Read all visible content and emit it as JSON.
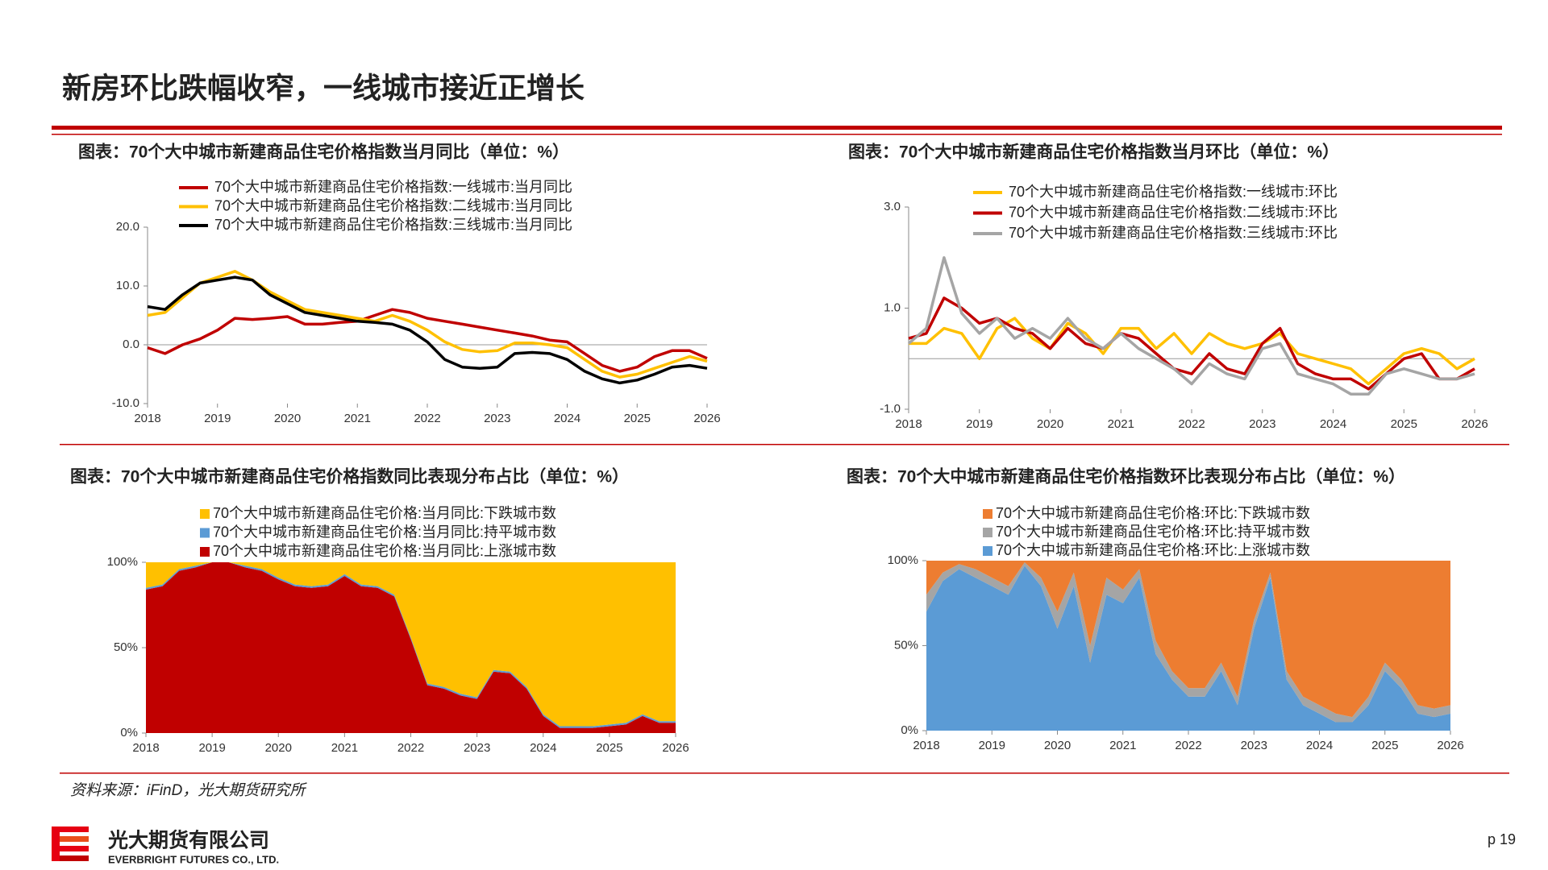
{
  "title": "新房环比跌幅收窄，一线城市接近正增长",
  "source": "资料来源：iFinD，光大期货研究所",
  "company": "光大期货有限公司",
  "company_en": "EVERBRIGHT FUTURES CO., LTD.",
  "page": "p 19",
  "chart_data": [
    {
      "type": "line",
      "title": "图表：70个大中城市新建商品住宅价格指数当月同比（单位：%）",
      "x": [
        2018,
        2018.25,
        2018.5,
        2018.75,
        2019,
        2019.25,
        2019.5,
        2019.75,
        2020,
        2020.25,
        2020.5,
        2020.75,
        2021,
        2021.25,
        2021.5,
        2021.75,
        2022,
        2022.25,
        2022.5,
        2022.75,
        2023,
        2023.25,
        2023.5,
        2023.75,
        2024,
        2024.25,
        2024.5,
        2024.75,
        2025,
        2025.25,
        2025.5,
        2025.75,
        2026
      ],
      "xlim": [
        2018,
        2026
      ],
      "xticks": [
        2018,
        2019,
        2020,
        2021,
        2022,
        2023,
        2024,
        2025,
        2026
      ],
      "ylim": [
        -10,
        20
      ],
      "yticks": [
        {
          "value": -10,
          "label": "-10.0"
        },
        {
          "value": 0,
          "label": "0.0"
        },
        {
          "value": 10,
          "label": "10.0"
        },
        {
          "value": 20,
          "label": "20.0"
        }
      ],
      "series": [
        {
          "name": "70个大中城市新建商品住宅价格指数:一线城市:当月同比",
          "color": "#C00000",
          "values": [
            -0.5,
            -1.5,
            0,
            1,
            2.5,
            4.5,
            4.3,
            4.5,
            4.8,
            3.5,
            3.5,
            3.8,
            4,
            5,
            6,
            5.5,
            4.5,
            4,
            3.5,
            3,
            2.5,
            2,
            1.5,
            0.8,
            0.5,
            -1.5,
            -3.5,
            -4.5,
            -3.8,
            -2,
            -1,
            -1,
            -2.3
          ]
        },
        {
          "name": "70个大中城市新建商品住宅价格指数:二线城市:当月同比",
          "color": "#FFC000",
          "values": [
            5,
            5.5,
            8,
            10.5,
            11.5,
            12.5,
            11,
            9,
            7.5,
            6,
            5.5,
            5,
            4.5,
            4,
            5,
            4,
            2.5,
            0.5,
            -0.8,
            -1.2,
            -1.0,
            0.3,
            0.3,
            0,
            -0.5,
            -2.5,
            -4.5,
            -5.5,
            -5,
            -4,
            -3,
            -2,
            -2.8
          ]
        },
        {
          "name": "70个大中城市新建商品住宅价格指数:三线城市:当月同比",
          "color": "#000000",
          "values": [
            6.5,
            6,
            8.5,
            10.5,
            11,
            11.5,
            11,
            8.5,
            7,
            5.5,
            5,
            4.5,
            4,
            3.8,
            3.5,
            2.5,
            0.5,
            -2.5,
            -3.8,
            -4,
            -3.8,
            -1.5,
            -1.3,
            -1.5,
            -2.5,
            -4.5,
            -5.8,
            -6.5,
            -6,
            -5,
            -3.8,
            -3.5,
            -4
          ]
        }
      ]
    },
    {
      "type": "line",
      "title": "图表：70个大中城市新建商品住宅价格指数当月环比（单位：%）",
      "x": [
        2018,
        2018.25,
        2018.5,
        2018.75,
        2019,
        2019.25,
        2019.5,
        2019.75,
        2020,
        2020.25,
        2020.5,
        2020.75,
        2021,
        2021.25,
        2021.5,
        2021.75,
        2022,
        2022.25,
        2022.5,
        2022.75,
        2023,
        2023.25,
        2023.5,
        2023.75,
        2024,
        2024.25,
        2024.5,
        2024.75,
        2025,
        2025.25,
        2025.5,
        2025.75,
        2026
      ],
      "xlim": [
        2018,
        2026
      ],
      "xticks": [
        2018,
        2019,
        2020,
        2021,
        2022,
        2023,
        2024,
        2025,
        2026
      ],
      "ylim": [
        -1,
        3
      ],
      "yticks": [
        {
          "value": -1,
          "label": "-1.0"
        },
        {
          "value": 1,
          "label": "1.0"
        },
        {
          "value": 3,
          "label": "3.0"
        }
      ],
      "series": [
        {
          "name": "70个大中城市新建商品住宅价格指数:一线城市:环比",
          "color": "#FFC000",
          "values": [
            0.3,
            0.3,
            0.6,
            0.5,
            0.0,
            0.6,
            0.8,
            0.4,
            0.2,
            0.7,
            0.5,
            0.1,
            0.6,
            0.6,
            0.2,
            0.5,
            0.1,
            0.5,
            0.3,
            0.2,
            0.3,
            0.5,
            0.1,
            0.0,
            -0.1,
            -0.2,
            -0.5,
            -0.2,
            0.1,
            0.2,
            0.1,
            -0.2,
            0.0
          ]
        },
        {
          "name": "70个大中城市新建商品住宅价格指数:二线城市:环比",
          "color": "#C00000",
          "values": [
            0.4,
            0.5,
            1.2,
            1.0,
            0.7,
            0.8,
            0.6,
            0.5,
            0.2,
            0.6,
            0.3,
            0.2,
            0.5,
            0.4,
            0.1,
            -0.2,
            -0.3,
            0.1,
            -0.2,
            -0.3,
            0.3,
            0.6,
            -0.1,
            -0.3,
            -0.4,
            -0.4,
            -0.6,
            -0.3,
            0.0,
            0.1,
            -0.4,
            -0.4,
            -0.2
          ]
        },
        {
          "name": "70个大中城市新建商品住宅价格指数:三线城市:环比",
          "color": "#A5A5A5",
          "values": [
            0.3,
            0.6,
            2.0,
            0.9,
            0.5,
            0.8,
            0.4,
            0.6,
            0.4,
            0.8,
            0.4,
            0.2,
            0.5,
            0.2,
            0.0,
            -0.2,
            -0.5,
            -0.1,
            -0.3,
            -0.4,
            0.2,
            0.3,
            -0.3,
            -0.4,
            -0.5,
            -0.7,
            -0.7,
            -0.3,
            -0.2,
            -0.3,
            -0.4,
            -0.4,
            -0.3
          ]
        }
      ]
    },
    {
      "type": "area",
      "title": "图表：70个大中城市新建商品住宅价格指数同比表现分布占比（单位：%）",
      "x": [
        2018,
        2018.25,
        2018.5,
        2018.75,
        2019,
        2019.25,
        2019.5,
        2019.75,
        2020,
        2020.25,
        2020.5,
        2020.75,
        2021,
        2021.25,
        2021.5,
        2021.75,
        2022,
        2022.25,
        2022.5,
        2022.75,
        2023,
        2023.25,
        2023.5,
        2023.75,
        2024,
        2024.25,
        2024.5,
        2024.75,
        2025,
        2025.25,
        2025.5,
        2025.75,
        2026
      ],
      "xlim": [
        2018,
        2026
      ],
      "xticks": [
        2018,
        2019,
        2020,
        2021,
        2022,
        2023,
        2024,
        2025,
        2026
      ],
      "ylim": [
        0,
        100
      ],
      "yticks": [
        {
          "value": 0,
          "label": "0%"
        },
        {
          "value": 50,
          "label": "50%"
        },
        {
          "value": 100,
          "label": "100%"
        }
      ],
      "series": [
        {
          "name": "70个大中城市新建商品住宅价格:当月同比:下跌城市数",
          "color": "#FFC000",
          "values": [
            15,
            13,
            4,
            2,
            0,
            0,
            2,
            4,
            9,
            13,
            14,
            13,
            7,
            13,
            14,
            19,
            44,
            71,
            73,
            77,
            79,
            63,
            64,
            73,
            89,
            96,
            96,
            96,
            95,
            94,
            89,
            93,
            93
          ]
        },
        {
          "name": "70个大中城市新建商品住宅价格:当月同比:持平城市数",
          "color": "#5B9BD5",
          "values": [
            1,
            1,
            1,
            1,
            0,
            0,
            1,
            1,
            1,
            1,
            1,
            1,
            1,
            1,
            1,
            1,
            1,
            1,
            1,
            1,
            1,
            1,
            1,
            1,
            1,
            1,
            1,
            1,
            1,
            1,
            1,
            1,
            1
          ]
        },
        {
          "name": "70个大中城市新建商品住宅价格:当月同比:上涨城市数",
          "color": "#C00000",
          "values": [
            84,
            86,
            95,
            97,
            100,
            100,
            97,
            95,
            90,
            86,
            85,
            86,
            92,
            86,
            85,
            80,
            55,
            28,
            26,
            22,
            20,
            36,
            35,
            26,
            10,
            3,
            3,
            3,
            4,
            5,
            10,
            6,
            6
          ]
        }
      ]
    },
    {
      "type": "area",
      "title": "图表：70个大中城市新建商品住宅价格指数环比表现分布占比（单位：%）",
      "x": [
        2018,
        2018.25,
        2018.5,
        2018.75,
        2019,
        2019.25,
        2019.5,
        2019.75,
        2020,
        2020.25,
        2020.5,
        2020.75,
        2021,
        2021.25,
        2021.5,
        2021.75,
        2022,
        2022.25,
        2022.5,
        2022.75,
        2023,
        2023.25,
        2023.5,
        2023.75,
        2024,
        2024.25,
        2024.5,
        2024.75,
        2025,
        2025.25,
        2025.5,
        2025.75,
        2026
      ],
      "xlim": [
        2018,
        2026
      ],
      "xticks": [
        2018,
        2019,
        2020,
        2021,
        2022,
        2023,
        2024,
        2025,
        2026
      ],
      "ylim": [
        0,
        100
      ],
      "yticks": [
        {
          "value": 0,
          "label": "0%"
        },
        {
          "value": 50,
          "label": "50%"
        },
        {
          "value": 100,
          "label": "100%"
        }
      ],
      "series": [
        {
          "name": "70个大中城市新建商品住宅价格:环比:下跌城市数",
          "color": "#ED7D31",
          "values": [
            20,
            7,
            2,
            5,
            10,
            15,
            1,
            10,
            30,
            7,
            50,
            10,
            17,
            5,
            47,
            65,
            75,
            75,
            60,
            80,
            35,
            7,
            65,
            80,
            85,
            90,
            92,
            80,
            60,
            70,
            85,
            87,
            85
          ]
        },
        {
          "name": "70个大中城市新建商品住宅价格:环比:持平城市数",
          "color": "#A5A5A5",
          "values": [
            10,
            5,
            3,
            5,
            5,
            5,
            2,
            5,
            10,
            8,
            10,
            10,
            8,
            5,
            8,
            5,
            5,
            5,
            5,
            5,
            5,
            3,
            5,
            5,
            5,
            5,
            3,
            5,
            5,
            5,
            5,
            5,
            5
          ]
        },
        {
          "name": "70个大中城市新建商品住宅价格:环比:上涨城市数",
          "color": "#5B9BD5",
          "values": [
            70,
            88,
            95,
            90,
            85,
            80,
            97,
            85,
            60,
            85,
            40,
            80,
            75,
            90,
            45,
            30,
            20,
            20,
            35,
            15,
            60,
            90,
            30,
            15,
            10,
            5,
            5,
            15,
            35,
            25,
            10,
            8,
            10
          ]
        }
      ]
    }
  ]
}
